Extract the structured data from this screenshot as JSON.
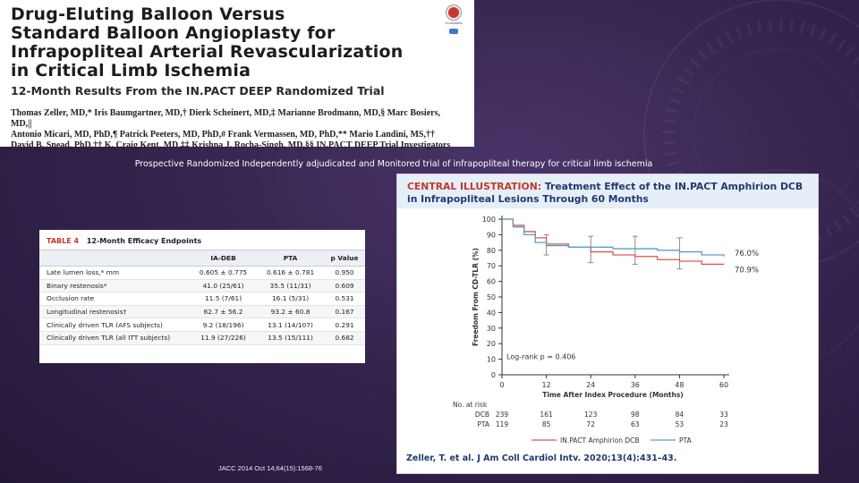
{
  "header": {
    "title_lines": [
      "Drug-Eluting Balloon Versus",
      "Standard Balloon Angioplasty for",
      "Infrapopliteal Arterial Revascularization",
      "in Critical Limb Ischemia"
    ],
    "subtitle": "12-Month Results From the IN.PACT DEEP Randomized Trial",
    "authors": [
      "Thomas Zeller, MD,* Iris Baumgartner, MD,† Dierk Scheinert, MD,‡ Marianne Brodmann, MD,§ Marc Bosiers, MD,||",
      "Antonio Micari, MD, PhD,¶ Patrick Peeters, MD, PhD,# Frank Vermassen, MD, PhD,** Mario Landini, MS,††",
      "David B. Snead, PhD,†† K. Craig Kent, MD,‡‡ Krishna J. Rocha-Singh, MD,§§ IN.PACT DEEP Trial Investigators"
    ],
    "crossmark_label": "CrossMark"
  },
  "slide": {
    "tagline": "Prospective Randomized Independently adjudicated and Monitored trial of infrapopliteal therapy for critical limb ischemia",
    "citation": "JACC 2014 Oct 14;64(15):1568-76"
  },
  "table": {
    "number": "TABLE 4",
    "name": "12-Month Efficacy Endpoints",
    "columns": [
      "",
      "IA-DEB",
      "PTA",
      "p Value"
    ],
    "rows": [
      [
        "Late lumen loss,* mm",
        "0.605 ± 0.775",
        "0.616 ± 0.781",
        "0.950"
      ],
      [
        "Binary restenosis*",
        "41.0 (25/61)",
        "35.5 (11/31)",
        "0.609"
      ],
      [
        "Occlusion rate",
        "11.5 (7/61)",
        "16.1 (5/31)",
        "0.531"
      ],
      [
        "Longitudinal restenosis†",
        "62.7 ± 56.2",
        "93.2 ± 60.8",
        "0.167"
      ],
      [
        "Clinically driven TLR (AFS subjects)",
        "9.2 (18/196)",
        "13.1 (14/107)",
        "0.291"
      ],
      [
        "Clinically driven TLR (all ITT subjects)",
        "11.9 (27/226)",
        "13.5 (15/111)",
        "0.682"
      ]
    ]
  },
  "central_illustration": {
    "label": "CENTRAL ILLUSTRATION:",
    "heading_rest": "Treatment Effect of the IN.PACT Amphirion DCB",
    "heading_line2": "in Infrapopliteal Lesions Through 60 Months",
    "footer": "Zeller, T. et al. J Am Coll Cardiol Intv. 2020;13(4):431–43.",
    "colors": {
      "dcb": "#e0574f",
      "pta": "#5b9ec9",
      "axis": "#333333",
      "error_bar": "#8a8a8a"
    }
  },
  "chart_data": {
    "type": "line",
    "title": "Treatment Effect of the IN.PACT Amphirion DCB in Infrapopliteal Lesions Through 60 Months",
    "xlabel": "Time After Index Procedure (Months)",
    "ylabel": "Freedom From CD-TLR (%)",
    "xlim": [
      0,
      60
    ],
    "ylim": [
      0,
      100
    ],
    "x_ticks": [
      "0",
      "12",
      "24",
      "36",
      "48",
      "60"
    ],
    "y_ticks": [
      "0",
      "10",
      "20",
      "30",
      "40",
      "50",
      "60",
      "70",
      "80",
      "90",
      "100"
    ],
    "series": [
      {
        "name": "IN.PACT Amphirion DCB",
        "x": [
          0,
          3,
          6,
          9,
          12,
          18,
          24,
          30,
          36,
          42,
          48,
          54,
          60
        ],
        "values": [
          100,
          96,
          92,
          88,
          84,
          82,
          79,
          77,
          76,
          74,
          73,
          71,
          70.9
        ],
        "end_label": "70.9%"
      },
      {
        "name": "PTA",
        "x": [
          0,
          3,
          6,
          9,
          12,
          18,
          24,
          30,
          36,
          42,
          48,
          54,
          60
        ],
        "values": [
          100,
          95,
          90,
          85,
          83,
          82,
          82,
          81,
          81,
          80,
          79,
          77,
          76.0
        ],
        "end_label": "76.0%"
      }
    ],
    "error_bars": [
      {
        "x": 12,
        "low": 77,
        "high": 90
      },
      {
        "x": 24,
        "low": 72,
        "high": 89
      },
      {
        "x": 36,
        "low": 71,
        "high": 89
      },
      {
        "x": 48,
        "low": 68,
        "high": 88
      }
    ],
    "annotation": "Log-rank p = 0.406",
    "at_risk": {
      "title": "No. at risk",
      "rows": [
        {
          "label": "DCB",
          "values": [
            "239",
            "161",
            "123",
            "98",
            "84",
            "33"
          ]
        },
        {
          "label": "PTA",
          "values": [
            "119",
            "85",
            "72",
            "63",
            "53",
            "23"
          ]
        }
      ]
    },
    "legend": [
      "IN.PACT Amphirion DCB",
      "PTA"
    ]
  }
}
